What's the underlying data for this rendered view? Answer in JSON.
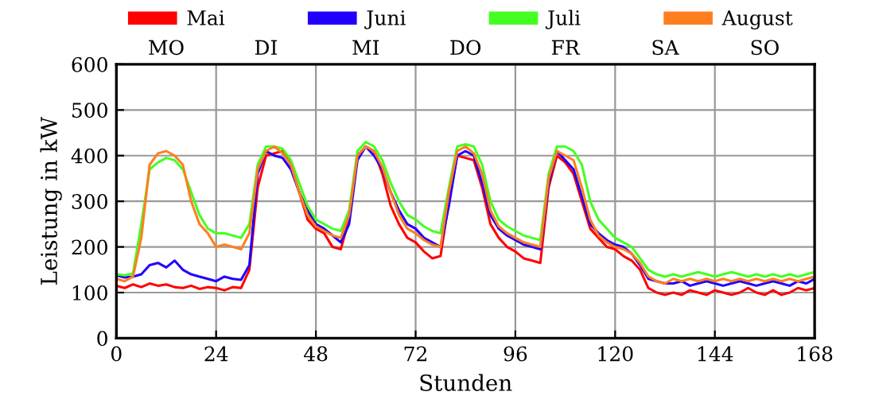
{
  "chart_data": {
    "type": "line",
    "xlabel": "Stunden",
    "ylabel": "Leistung in kW",
    "x": [
      0,
      2,
      4,
      6,
      8,
      10,
      12,
      14,
      16,
      18,
      20,
      22,
      24,
      26,
      28,
      30,
      32,
      34,
      36,
      38,
      40,
      42,
      44,
      46,
      48,
      50,
      52,
      54,
      56,
      58,
      60,
      62,
      64,
      66,
      68,
      70,
      72,
      74,
      76,
      78,
      80,
      82,
      84,
      86,
      88,
      90,
      92,
      94,
      96,
      98,
      100,
      102,
      104,
      106,
      108,
      110,
      112,
      114,
      116,
      118,
      120,
      122,
      124,
      126,
      128,
      130,
      132,
      134,
      136,
      138,
      140,
      142,
      144,
      146,
      148,
      150,
      152,
      154,
      156,
      158,
      160,
      162,
      164,
      166,
      168
    ],
    "series": [
      {
        "name": "Mai",
        "color": "#ff0000",
        "values": [
          115,
          110,
          118,
          112,
          120,
          115,
          118,
          112,
          110,
          115,
          108,
          112,
          110,
          105,
          112,
          110,
          150,
          330,
          400,
          405,
          410,
          380,
          320,
          260,
          240,
          230,
          200,
          195,
          260,
          400,
          420,
          410,
          360,
          290,
          250,
          220,
          210,
          190,
          175,
          180,
          300,
          400,
          395,
          390,
          330,
          250,
          220,
          200,
          190,
          175,
          170,
          165,
          330,
          400,
          385,
          360,
          300,
          240,
          220,
          200,
          195,
          180,
          170,
          150,
          110,
          100,
          95,
          100,
          95,
          105,
          100,
          95,
          105,
          100,
          95,
          100,
          110,
          100,
          95,
          105,
          95,
          100,
          110,
          105,
          110
        ]
      },
      {
        "name": "Juni",
        "color": "#2200ff",
        "values": [
          138,
          133,
          135,
          140,
          160,
          165,
          155,
          170,
          150,
          140,
          135,
          130,
          125,
          135,
          130,
          128,
          160,
          360,
          410,
          400,
          395,
          370,
          320,
          280,
          250,
          240,
          225,
          210,
          250,
          390,
          420,
          400,
          370,
          320,
          280,
          250,
          240,
          220,
          210,
          200,
          290,
          400,
          410,
          400,
          340,
          270,
          240,
          225,
          215,
          205,
          200,
          195,
          340,
          410,
          390,
          370,
          310,
          250,
          230,
          215,
          205,
          200,
          185,
          160,
          130,
          125,
          120,
          120,
          125,
          115,
          120,
          125,
          120,
          115,
          120,
          125,
          120,
          115,
          120,
          125,
          120,
          115,
          125,
          120,
          130
        ]
      },
      {
        "name": "Juli",
        "color": "#44ff22",
        "values": [
          140,
          138,
          142,
          250,
          370,
          385,
          395,
          390,
          370,
          320,
          270,
          240,
          230,
          230,
          225,
          220,
          250,
          380,
          420,
          420,
          415,
          390,
          340,
          290,
          260,
          250,
          240,
          235,
          280,
          410,
          430,
          420,
          390,
          340,
          300,
          270,
          260,
          245,
          235,
          230,
          330,
          420,
          425,
          420,
          380,
          300,
          260,
          245,
          235,
          225,
          220,
          215,
          360,
          420,
          420,
          410,
          380,
          300,
          260,
          240,
          220,
          210,
          200,
          175,
          150,
          140,
          135,
          140,
          135,
          140,
          145,
          140,
          135,
          140,
          145,
          140,
          135,
          140,
          135,
          140,
          135,
          140,
          135,
          140,
          145
        ]
      },
      {
        "name": "August",
        "color": "#ff7f1f",
        "values": [
          130,
          125,
          135,
          220,
          380,
          405,
          410,
          400,
          380,
          300,
          250,
          230,
          200,
          205,
          200,
          195,
          230,
          370,
          410,
          420,
          405,
          380,
          320,
          270,
          245,
          235,
          225,
          220,
          270,
          400,
          420,
          410,
          375,
          320,
          270,
          240,
          230,
          215,
          205,
          200,
          320,
          410,
          420,
          405,
          360,
          280,
          245,
          230,
          220,
          210,
          205,
          200,
          350,
          410,
          400,
          390,
          330,
          260,
          225,
          210,
          200,
          195,
          185,
          165,
          135,
          125,
          120,
          130,
          125,
          130,
          125,
          130,
          125,
          130,
          125,
          130,
          125,
          130,
          125,
          130,
          125,
          130,
          125,
          130,
          135
        ]
      }
    ],
    "xlim": [
      0,
      168
    ],
    "xticks": [
      0,
      24,
      48,
      72,
      96,
      120,
      144,
      168
    ],
    "ylim": [
      0,
      600
    ],
    "yticks": [
      0,
      100,
      200,
      300,
      400,
      500,
      600
    ],
    "annotations": [
      "MO",
      "DI",
      "MI",
      "DO",
      "FR",
      "SA",
      "SO"
    ],
    "grid": true,
    "legend": "top",
    "marker": "none",
    "line_style": "solid"
  }
}
